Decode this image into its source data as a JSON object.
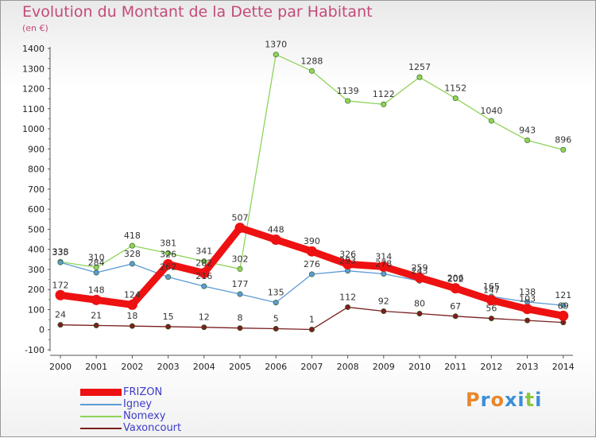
{
  "title": "Evolution du Montant de la Dette par Habitant",
  "subtitle": "(en €)",
  "logo": {
    "letters": [
      "P",
      "r",
      "o",
      "x",
      "i",
      "t",
      "i"
    ],
    "colors": [
      "#e8872a",
      "#3a8fd6",
      "#e8872a",
      "#3a8fd6",
      "#3a8fd6",
      "#8cc63f",
      "#3a8fd6"
    ]
  },
  "chart_data": {
    "type": "line",
    "x": [
      "2000",
      "2001",
      "2002",
      "2003",
      "2004",
      "2005",
      "2006",
      "2007",
      "2008",
      "2009",
      "2010",
      "2011",
      "2012",
      "2013",
      "2014"
    ],
    "ylim": [
      -100,
      1400
    ],
    "yticks": [
      -100,
      0,
      100,
      200,
      300,
      400,
      500,
      600,
      700,
      800,
      900,
      1000,
      1100,
      1200,
      1300,
      1400
    ],
    "grid": false,
    "legend_position": "bottom-left",
    "series": [
      {
        "name": "Vaxoncourt",
        "color": "#7a1f1f",
        "values": [
          24,
          21,
          18,
          15,
          12,
          8,
          5,
          1,
          112,
          92,
          80,
          67,
          56,
          46,
          36
        ],
        "labels": [
          "24",
          "21",
          "18",
          "15",
          "12",
          "8",
          "5",
          "1",
          "112",
          "92",
          "80",
          "67",
          "56",
          null,
          null
        ]
      },
      {
        "name": "Nomexy",
        "color": "#8fd35a",
        "values": [
          338,
          310,
          418,
          381,
          341,
          302,
          1370,
          1288,
          1139,
          1122,
          1257,
          1152,
          1040,
          943,
          896
        ],
        "labels": [
          "338",
          "310",
          "418",
          "381",
          "341",
          "302",
          "1370",
          "1288",
          "1139",
          "1122",
          "1257",
          "1152",
          "1040",
          "943",
          "896"
        ]
      },
      {
        "name": "Igney",
        "color": "#5b9bd5",
        "values": [
          335,
          284,
          328,
          262,
          216,
          177,
          135,
          276,
          293,
          278,
          243,
          202,
          165,
          138,
          121
        ],
        "labels": [
          "335",
          "284",
          "328",
          "262",
          "216",
          "177",
          "135",
          "276",
          "293",
          "278",
          "243",
          "202",
          "165",
          "138",
          "121"
        ]
      },
      {
        "name": "FRIZON",
        "color": "#ee1111",
        "values": [
          172,
          148,
          124,
          326,
          282,
          507,
          448,
          390,
          326,
          314,
          259,
          206,
          147,
          103,
          69
        ],
        "labels": [
          "172",
          "148",
          "124",
          "326",
          "282",
          "507",
          "448",
          "390",
          "326",
          "314",
          "259",
          "206",
          "147",
          "103",
          "69"
        ]
      }
    ],
    "legend": [
      "FRIZON",
      "Igney",
      "Nomexy",
      "Vaxoncourt"
    ]
  }
}
